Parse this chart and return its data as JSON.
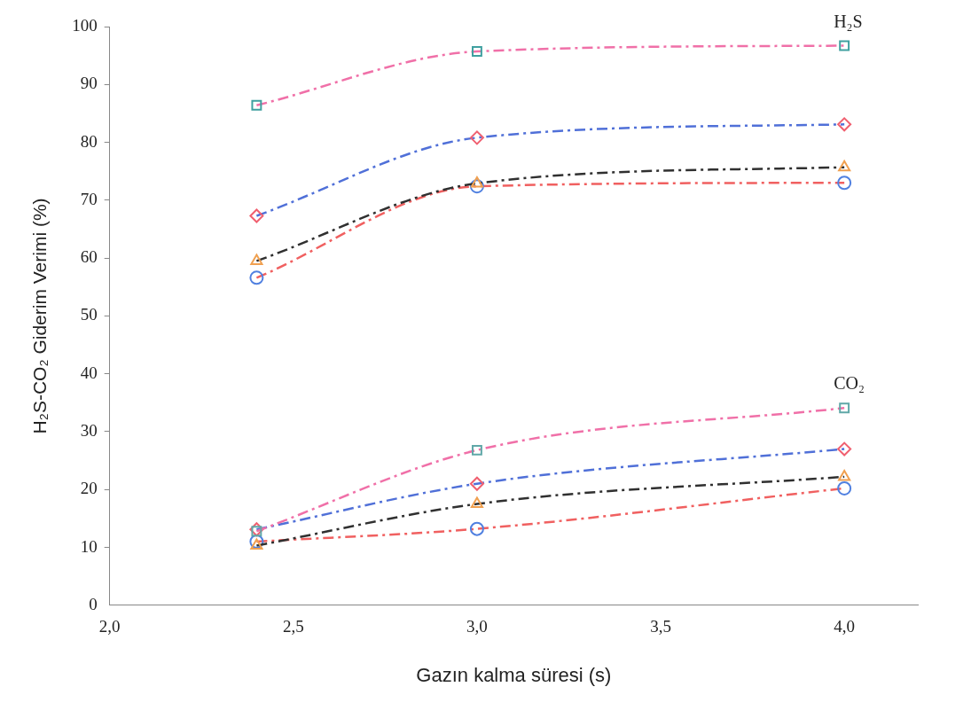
{
  "chart_data": {
    "type": "line",
    "xlabel": "Gazın kalma süresi (s)",
    "ylabel": "H₂S-CO₂ Giderim Verimi (%)",
    "x": [
      2.4,
      3.0,
      4.0
    ],
    "xlim": [
      2.0,
      4.2
    ],
    "xticks": [
      {
        "value": 2.0,
        "label": "2,0"
      },
      {
        "value": 2.5,
        "label": "2,5"
      },
      {
        "value": 3.0,
        "label": "3,0"
      },
      {
        "value": 3.5,
        "label": "3,5"
      },
      {
        "value": 4.0,
        "label": "4,0"
      }
    ],
    "ylim": [
      0,
      100
    ],
    "yticks": [
      0,
      10,
      20,
      30,
      40,
      50,
      60,
      70,
      80,
      90,
      100
    ],
    "grid": false,
    "legend": false,
    "line_style": "dashed",
    "series": [
      {
        "color": "#f070a8",
        "marker": "square",
        "colors": [
          "#40a0a0",
          "#40a0a0",
          "#40a0a0"
        ],
        "values": [
          86.4,
          95.7,
          96.7
        ]
      },
      {
        "color": "#5070d8",
        "marker": "diamond",
        "colors": [
          "#f06070",
          "#f06070",
          "#f06070"
        ],
        "values": [
          67.3,
          80.8,
          83.1
        ]
      },
      {
        "color": "#303030",
        "marker": "triangle",
        "colors": [
          "#f0a050",
          "#f0a050",
          "#f0a050"
        ],
        "values": [
          59.5,
          72.9,
          75.7
        ]
      },
      {
        "color": "#f06060",
        "marker": "circle",
        "colors": [
          "#5080e0",
          "#5080e0",
          "#5080e0"
        ],
        "values": [
          56.6,
          72.4,
          73.0
        ]
      },
      {
        "color": "#f070a8",
        "marker": "square",
        "colors": [
          "#60a8a8",
          "#60a8a8",
          "#60a8a8"
        ],
        "values": [
          12.8,
          26.8,
          34.1
        ]
      },
      {
        "color": "#5070d8",
        "marker": "diamond",
        "colors": [
          "#f06070",
          "#f06070",
          "#f06070"
        ],
        "values": [
          13.1,
          21.0,
          27.0
        ]
      },
      {
        "color": "#303030",
        "marker": "triangle",
        "colors": [
          "#f0a050",
          "#f0a050",
          "#f0a050"
        ],
        "values": [
          10.3,
          17.5,
          22.2
        ]
      },
      {
        "color": "#f06060",
        "marker": "circle",
        "colors": [
          "#5080e0",
          "#5080e0",
          "#5080e0"
        ],
        "values": [
          11.0,
          13.2,
          20.2
        ]
      }
    ],
    "annotations": [
      "H₂S",
      "CO₂"
    ]
  }
}
